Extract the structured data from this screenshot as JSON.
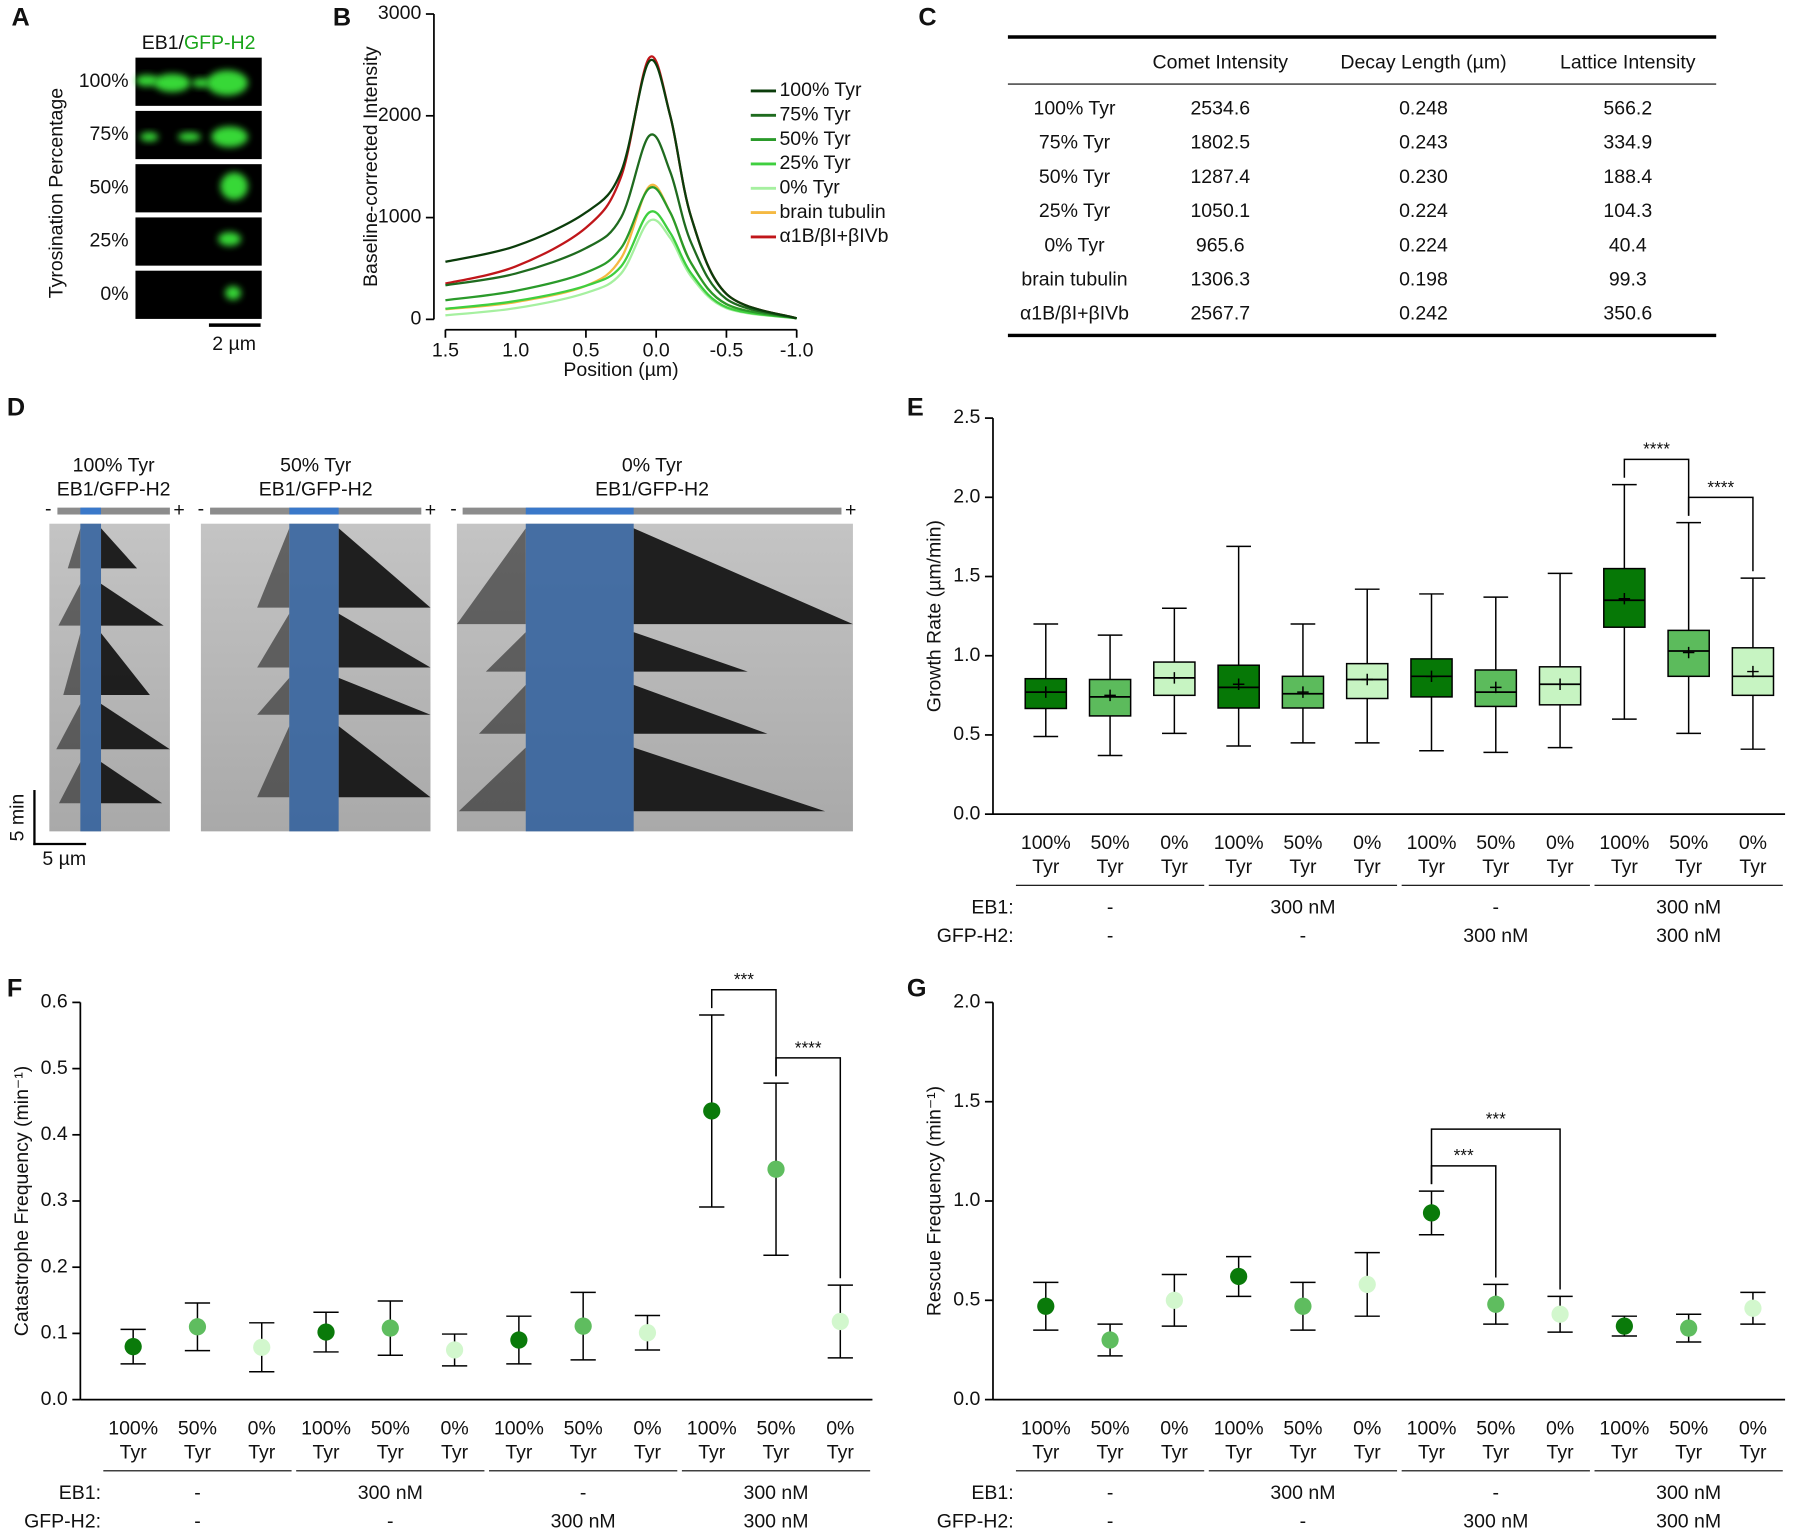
{
  "panel_labels": [
    "A",
    "B",
    "C",
    "D",
    "E",
    "F",
    "G"
  ],
  "panel_a": {
    "stain": [
      "EB1/",
      "GFP-H2"
    ],
    "ylabel": "Tyrosination Percentage",
    "rows": [
      "100%",
      "75%",
      "50%",
      "25%",
      "0%"
    ],
    "scale": "2 µm"
  },
  "table": {
    "columns": [
      "Comet Intensity",
      "Decay Length (µm)",
      "Lattice Intensity"
    ],
    "rows": [
      [
        "100% Tyr",
        "2534.6",
        "0.248",
        "566.2"
      ],
      [
        "75% Tyr",
        "1802.5",
        "0.243",
        "334.9"
      ],
      [
        "50% Tyr",
        "1287.4",
        "0.230",
        "188.4"
      ],
      [
        "25% Tyr",
        "1050.1",
        "0.224",
        "104.3"
      ],
      [
        "0% Tyr",
        "965.6",
        "0.224",
        "40.4"
      ],
      [
        "brain tubulin",
        "1306.3",
        "0.198",
        "99.3"
      ],
      [
        "α1B/βI+βIVb",
        "2567.7",
        "0.242",
        "350.6"
      ]
    ]
  },
  "panel_d": {
    "kymographs": [
      {
        "title": "100% Tyr",
        "subtitle": "EB1/GFP-H2"
      },
      {
        "title": "50% Tyr",
        "subtitle": "EB1/GFP-H2"
      },
      {
        "title": "0% Tyr",
        "subtitle": "EB1/GFP-H2"
      }
    ],
    "minus": "-",
    "plus": "+",
    "time_scale": "5 min",
    "length_scale": "5 µm"
  },
  "chart_data": [
    {
      "type": "line",
      "xlabel": "Position (µm)",
      "ylabel": "Baseline-corrected Intensity",
      "x": [
        1.5,
        1.0,
        0.5,
        0.25,
        0.05,
        -0.1,
        -0.25,
        -0.5,
        -1.0
      ],
      "xlim": [
        1.5,
        -1.0
      ],
      "xticks": [
        1.5,
        {
          "value": 1.0,
          "label": "1.0"
        },
        0.5,
        {
          "value": 0,
          "label": "0.0"
        },
        -0.5,
        {
          "value": -1.0,
          "label": "-1.0"
        }
      ],
      "ylim": [
        0,
        3000
      ],
      "yticks": [
        0,
        1000,
        2000,
        3000
      ],
      "legend": "right",
      "series": [
        {
          "name": "100% Tyr",
          "color": "#0b3d0b",
          "values": [
            566,
            720,
            1050,
            1450,
            2535,
            2000,
            1000,
            250,
            10
          ]
        },
        {
          "name": "75% Tyr",
          "color": "#1f6b1f",
          "values": [
            335,
            450,
            700,
            1000,
            1803,
            1450,
            750,
            200,
            10
          ]
        },
        {
          "name": "50% Tyr",
          "color": "#2a9a2a",
          "values": [
            188,
            280,
            460,
            700,
            1287,
            1050,
            550,
            150,
            10
          ]
        },
        {
          "name": "25% Tyr",
          "color": "#3fcf3f",
          "values": [
            104,
            180,
            330,
            520,
            1050,
            850,
            450,
            120,
            10
          ]
        },
        {
          "name": "0% Tyr",
          "color": "#a6f0a0",
          "values": [
            40,
            110,
            260,
            450,
            966,
            800,
            420,
            110,
            10
          ]
        },
        {
          "name": "brain tubulin",
          "color": "#f5b942",
          "values": [
            99,
            170,
            330,
            600,
            1306,
            1050,
            550,
            150,
            10
          ]
        },
        {
          "name": "α1B/βI+βIVb",
          "color": "#c0161a",
          "values": [
            351,
            520,
            900,
            1400,
            2568,
            2000,
            1000,
            250,
            10
          ]
        }
      ]
    },
    {
      "type": "box",
      "ylabel": "Growth Rate (µm/min)",
      "ylim": [
        0,
        2.5
      ],
      "yticks": [
        {
          "value": 0,
          "label": "0.0"
        },
        0.5,
        {
          "value": 1.0,
          "label": "1.0"
        },
        1.5,
        {
          "value": 2.0,
          "label": "2.0"
        },
        2.5
      ],
      "categories": [
        [
          "100%",
          "Tyr"
        ],
        [
          "50%",
          "Tyr"
        ],
        [
          "0%",
          "Tyr"
        ],
        [
          "100%",
          "Tyr"
        ],
        [
          "50%",
          "Tyr"
        ],
        [
          "0%",
          "Tyr"
        ],
        [
          "100%",
          "Tyr"
        ],
        [
          "50%",
          "Tyr"
        ],
        [
          "0%",
          "Tyr"
        ],
        [
          "100%",
          "Tyr"
        ],
        [
          "50%",
          "Tyr"
        ],
        [
          "0%",
          "Tyr"
        ]
      ],
      "colors": [
        "#067806",
        "#5cbb5c",
        "#c7f4c2",
        "#067806",
        "#5cbb5c",
        "#c7f4c2",
        "#067806",
        "#5cbb5c",
        "#c7f4c2",
        "#067806",
        "#5cbb5c",
        "#c7f4c2"
      ],
      "min": [
        0.49,
        0.37,
        0.51,
        0.43,
        0.45,
        0.45,
        0.4,
        0.39,
        0.42,
        0.6,
        0.51,
        0.41
      ],
      "q1": [
        0.667,
        0.62,
        0.75,
        0.67,
        0.67,
        0.73,
        0.74,
        0.68,
        0.69,
        1.18,
        0.87,
        0.75
      ],
      "median": [
        0.77,
        0.74,
        0.86,
        0.8,
        0.76,
        0.85,
        0.87,
        0.77,
        0.82,
        1.35,
        1.03,
        0.87
      ],
      "q3": [
        0.855,
        0.85,
        0.96,
        0.94,
        0.87,
        0.95,
        0.98,
        0.91,
        0.93,
        1.55,
        1.16,
        1.05
      ],
      "max": [
        1.2,
        1.13,
        1.3,
        1.69,
        1.2,
        1.42,
        1.39,
        1.37,
        1.52,
        2.08,
        1.84,
        1.49
      ],
      "mean": [
        0.77,
        0.75,
        0.86,
        0.82,
        0.77,
        0.85,
        0.87,
        0.8,
        0.82,
        1.36,
        1.02,
        0.9
      ],
      "conditions": [
        {
          "label": "EB1:",
          "values": [
            "-",
            "300 nM",
            "-",
            "300 nM"
          ]
        },
        {
          "label": "GFP-H2:",
          "values": [
            "-",
            "-",
            "300 nM",
            "300 nM"
          ]
        }
      ],
      "annotations": [
        {
          "text": "****",
          "from": 9,
          "to": 10
        },
        {
          "text": "****",
          "from": 10,
          "to": 11
        }
      ]
    },
    {
      "type": "errorbar",
      "ylabel": "Catastrophe Frequency (min⁻¹)",
      "ylim": [
        0,
        0.6
      ],
      "yticks": [
        {
          "value": 0,
          "label": "0.0"
        },
        0.1,
        0.2,
        0.3,
        0.4,
        0.5,
        0.6
      ],
      "categories": [
        [
          "100%",
          "Tyr"
        ],
        [
          "50%",
          "Tyr"
        ],
        [
          "0%",
          "Tyr"
        ],
        [
          "100%",
          "Tyr"
        ],
        [
          "50%",
          "Tyr"
        ],
        [
          "0%",
          "Tyr"
        ],
        [
          "100%",
          "Tyr"
        ],
        [
          "50%",
          "Tyr"
        ],
        [
          "0%",
          "Tyr"
        ],
        [
          "100%",
          "Tyr"
        ],
        [
          "50%",
          "Tyr"
        ],
        [
          "0%",
          "Tyr"
        ]
      ],
      "colors": [
        "#0a7a0a",
        "#5fbd5f",
        "#d2f7cd",
        "#0a7a0a",
        "#5fbd5f",
        "#d2f7cd",
        "#0a7a0a",
        "#5fbd5f",
        "#d2f7cd",
        "#0a7a0a",
        "#5fbd5f",
        "#d2f7cd"
      ],
      "values": [
        0.08,
        0.11,
        0.079,
        0.102,
        0.108,
        0.075,
        0.09,
        0.111,
        0.101,
        0.436,
        0.348,
        0.118
      ],
      "errors": [
        0.026,
        0.036,
        0.037,
        0.03,
        0.041,
        0.024,
        0.036,
        0.051,
        0.026,
        0.145,
        0.13,
        0.055
      ],
      "conditions": [
        {
          "label": "EB1:",
          "values": [
            "-",
            "300 nM",
            "-",
            "300 nM"
          ]
        },
        {
          "label": "GFP-H2:",
          "values": [
            "-",
            "-",
            "300 nM",
            "300 nM"
          ]
        }
      ],
      "annotations": [
        {
          "text": "***",
          "from": 9,
          "to": 10
        },
        {
          "text": "****",
          "from": 10,
          "to": 11
        }
      ]
    },
    {
      "type": "errorbar",
      "ylabel": "Rescue Frequency (min⁻¹)",
      "ylim": [
        0,
        2.0
      ],
      "yticks": [
        {
          "value": 0,
          "label": "0.0"
        },
        0.5,
        {
          "value": 1.0,
          "label": "1.0"
        },
        1.5,
        {
          "value": 2.0,
          "label": "2.0"
        }
      ],
      "categories": [
        [
          "100%",
          "Tyr"
        ],
        [
          "50%",
          "Tyr"
        ],
        [
          "0%",
          "Tyr"
        ],
        [
          "100%",
          "Tyr"
        ],
        [
          "50%",
          "Tyr"
        ],
        [
          "0%",
          "Tyr"
        ],
        [
          "100%",
          "Tyr"
        ],
        [
          "50%",
          "Tyr"
        ],
        [
          "0%",
          "Tyr"
        ],
        [
          "100%",
          "Tyr"
        ],
        [
          "50%",
          "Tyr"
        ],
        [
          "0%",
          "Tyr"
        ]
      ],
      "colors": [
        "#0a7a0a",
        "#5fbd5f",
        "#d2f7cd",
        "#0a7a0a",
        "#5fbd5f",
        "#d2f7cd",
        "#0a7a0a",
        "#5fbd5f",
        "#d2f7cd",
        "#0a7a0a",
        "#5fbd5f",
        "#d2f7cd"
      ],
      "values": [
        0.47,
        0.3,
        0.5,
        0.62,
        0.47,
        0.58,
        0.94,
        0.48,
        0.43,
        0.37,
        0.36,
        0.46
      ],
      "errors": [
        0.12,
        0.08,
        0.13,
        0.1,
        0.12,
        0.16,
        0.11,
        0.1,
        0.09,
        0.05,
        0.07,
        0.08
      ],
      "conditions": [
        {
          "label": "EB1:",
          "values": [
            "-",
            "300 nM",
            "-",
            "300 nM"
          ]
        },
        {
          "label": "GFP-H2:",
          "values": [
            "-",
            "-",
            "300 nM",
            "300 nM"
          ]
        }
      ],
      "annotations": [
        {
          "text": "***",
          "from": 6,
          "to": 7
        },
        {
          "text": "***",
          "from": 6,
          "to": 8
        }
      ]
    }
  ]
}
